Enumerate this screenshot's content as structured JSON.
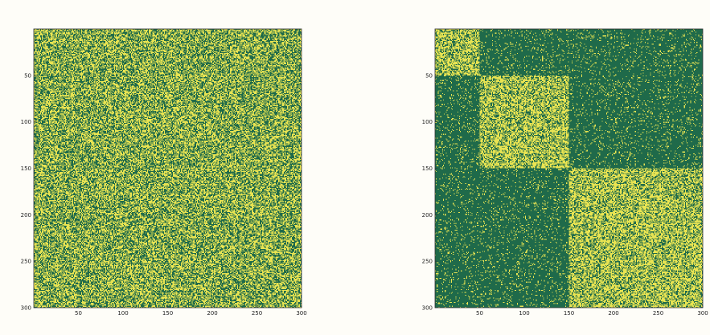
{
  "figure": {
    "background": "#fefdf8",
    "colors": {
      "low": "#1f6a4a",
      "high": "#e9e452",
      "axis": "#333333"
    }
  },
  "chart_data": [
    {
      "type": "heatmap",
      "title": "",
      "xlabel": "",
      "ylabel": "",
      "xlim": [
        0,
        300
      ],
      "ylim": [
        300,
        0
      ],
      "grid": false,
      "legend": "none",
      "x_ticks": [
        50,
        100,
        150,
        200,
        250,
        300
      ],
      "y_ticks": [
        50,
        100,
        150,
        200,
        250,
        300
      ],
      "x_tick_labels": [
        "50",
        "100",
        "150",
        "200",
        "250",
        "300"
      ],
      "y_tick_labels": [
        "50",
        "100",
        "150",
        "200",
        "250",
        "300"
      ],
      "matrix_size": 300,
      "values": "binary (0/1) random matrix with no visible block structure",
      "blocks": [
        {
          "from": 0,
          "to": 300,
          "density": 0.5
        }
      ],
      "off_block_density": 0.5
    },
    {
      "type": "heatmap",
      "title": "",
      "xlabel": "",
      "ylabel": "",
      "xlim": [
        0,
        300
      ],
      "ylim": [
        300,
        0
      ],
      "grid": false,
      "legend": "none",
      "x_ticks": [
        50,
        100,
        150,
        200,
        250,
        300
      ],
      "y_ticks": [
        50,
        100,
        150,
        200,
        250,
        300
      ],
      "x_tick_labels": [
        "50",
        "100",
        "150",
        "200",
        "250",
        "300"
      ],
      "y_tick_labels": [
        "50",
        "100",
        "150",
        "200",
        "250",
        "300"
      ],
      "matrix_size": 300,
      "values": "binary (0/1) matrix with three dense diagonal blocks",
      "blocks": [
        {
          "from": 0,
          "to": 50,
          "density": 0.6
        },
        {
          "from": 50,
          "to": 150,
          "density": 0.6
        },
        {
          "from": 150,
          "to": 300,
          "density": 0.6
        }
      ],
      "off_block_density": 0.1
    }
  ]
}
